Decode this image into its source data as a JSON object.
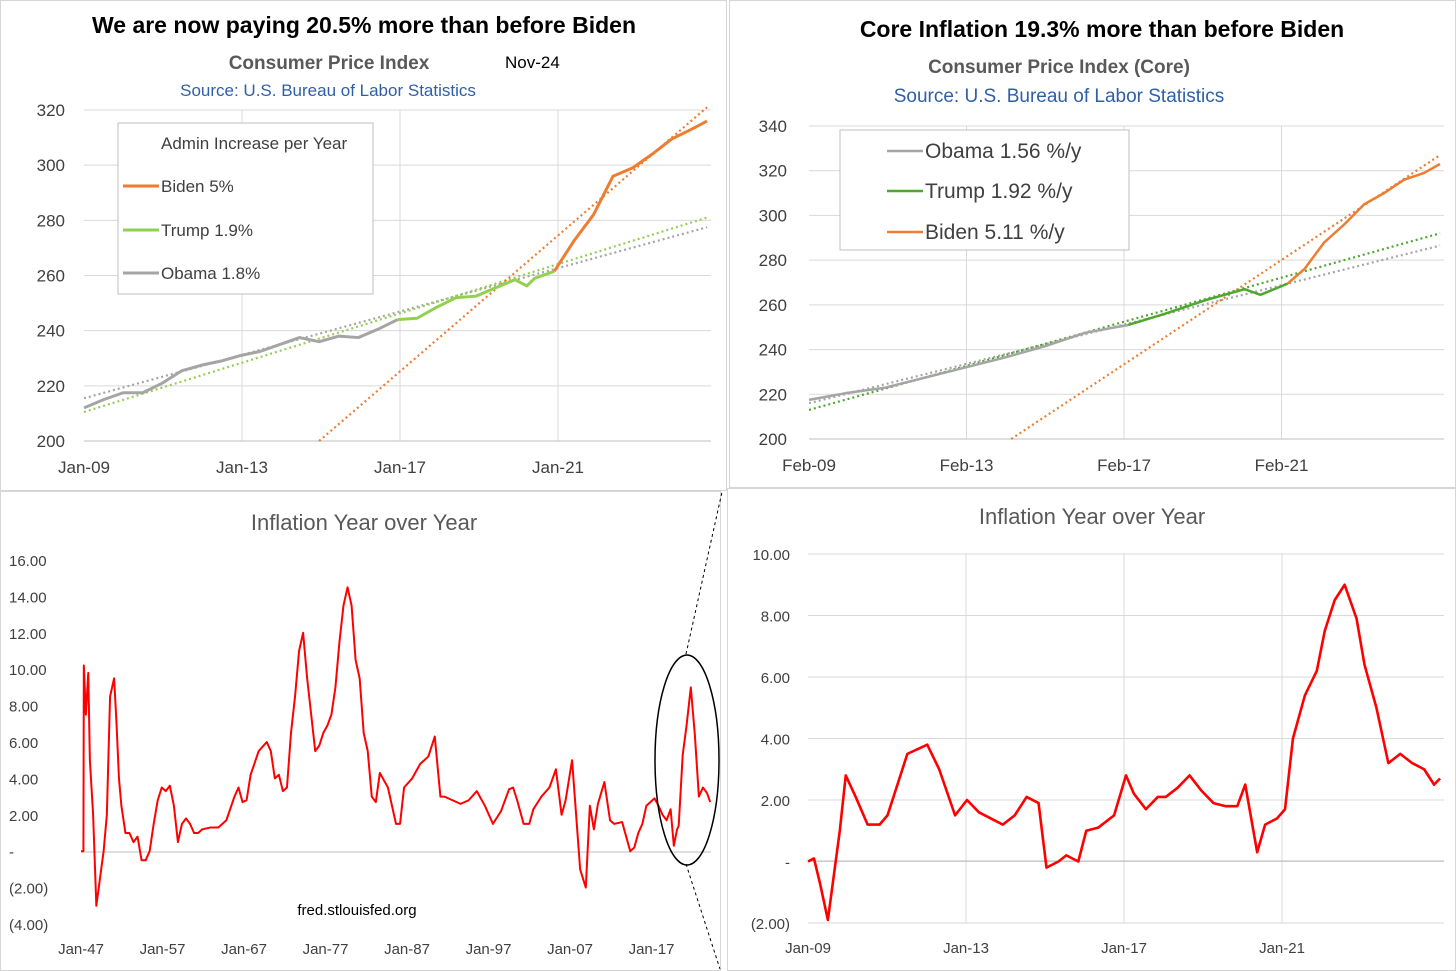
{
  "colors": {
    "biden": "#ED7D31",
    "trump_left": "#92D050",
    "trump_right": "#4EA72E",
    "obama": "#A5A5A5",
    "inflation": "#FF0000",
    "source_blue": "#2E5FA8",
    "grid": "#D9D9D9",
    "axis_text": "#404040",
    "title": "#000000",
    "subtitle": "#595959"
  },
  "chart_data": [
    {
      "type": "line",
      "title": "We are now paying 20.5% more than before Biden",
      "subtitle": "Consumer Price Index",
      "date_note": "Nov-24",
      "source": "Source: U.S. Bureau of Labor Statistics",
      "ylim": [
        200,
        320
      ],
      "yticks": [
        "200",
        "220",
        "240",
        "260",
        "280",
        "300",
        "320"
      ],
      "xlim": [
        2009.0,
        2025.0
      ],
      "xticks": [
        "Jan-09",
        "Jan-13",
        "Jan-17",
        "Jan-21"
      ],
      "grid": "horizontal+vertical",
      "legend_placement": "top-left",
      "legend_title": "Admin Increase per Year",
      "legend": [
        "Biden 5%",
        "Trump 1.9%",
        "Obama 1.8%"
      ],
      "series": [
        {
          "name": "Obama 1.8%",
          "color_key": "obama",
          "x": [
            2009.0,
            2009.5,
            2010.0,
            2010.5,
            2011.0,
            2011.5,
            2012.0,
            2012.5,
            2013.0,
            2013.5,
            2014.0,
            2014.5,
            2015.0,
            2015.5,
            2016.0,
            2016.5,
            2017.0
          ],
          "y": [
            212,
            215,
            217.5,
            217.5,
            221,
            225.5,
            227.5,
            229,
            231,
            232.5,
            235,
            237.5,
            236,
            238,
            237.5,
            240.5,
            244
          ]
        },
        {
          "name": "Trump 1.9%",
          "color_key": "trump_left",
          "x": [
            2017.0,
            2017.5,
            2018.0,
            2018.5,
            2019.0,
            2019.5,
            2020.0,
            2020.3,
            2020.5,
            2020.8,
            2021.0
          ],
          "y": [
            244,
            244.5,
            248.5,
            252,
            252.5,
            255.5,
            258.5,
            256.2,
            259,
            260.5,
            261.5
          ]
        },
        {
          "name": "Biden 5%",
          "color_key": "biden",
          "x": [
            2021.0,
            2021.5,
            2022.0,
            2022.5,
            2023.0,
            2023.5,
            2024.0,
            2024.5,
            2024.9
          ],
          "y": [
            261.5,
            272.5,
            282,
            296,
            299,
            304,
            309.5,
            313,
            316
          ]
        }
      ],
      "trendlines": [
        {
          "name": "Obama trend",
          "color_key": "obama",
          "x": [
            2009.0,
            2024.9
          ],
          "y": [
            215.5,
            277.5
          ]
        },
        {
          "name": "Trump trend",
          "color_key": "trump_left",
          "x": [
            2009.0,
            2024.9
          ],
          "y": [
            210.5,
            281
          ]
        },
        {
          "name": "Biden trend",
          "color_key": "biden",
          "x": [
            2015.0,
            2024.9
          ],
          "y": [
            200,
            321
          ]
        }
      ]
    },
    {
      "type": "line",
      "title": "Core Inflation 19.3% more than before Biden",
      "subtitle": "Consumer Price Index (Core)",
      "source": "Source: U.S. Bureau of Labor Statistics",
      "ylim": [
        200,
        340
      ],
      "yticks": [
        "200",
        "220",
        "240",
        "260",
        "280",
        "300",
        "320",
        "340"
      ],
      "xlim": [
        2009.08,
        2025.0
      ],
      "xticks": [
        "Feb-09",
        "Feb-13",
        "Feb-17",
        "Feb-21"
      ],
      "grid": "horizontal+vertical",
      "legend_placement": "top-left",
      "legend": [
        "Obama 1.56 %/y",
        "Trump 1.92 %/y",
        "Biden 5.11 %/y"
      ],
      "series": [
        {
          "name": "Obama 1.56 %/y",
          "color_key": "obama",
          "x": [
            2009.08,
            2010.0,
            2011.0,
            2012.0,
            2013.0,
            2014.0,
            2015.0,
            2016.0,
            2017.08
          ],
          "y": [
            217.5,
            220.5,
            223,
            227.5,
            232,
            236.5,
            241.5,
            247.5,
            251
          ]
        },
        {
          "name": "Trump 1.92 %/y",
          "color_key": "trump_right",
          "x": [
            2017.08,
            2018.0,
            2019.0,
            2020.0,
            2020.4,
            2021.08
          ],
          "y": [
            251,
            256,
            262,
            267,
            264.5,
            269.5
          ]
        },
        {
          "name": "Biden 5.11 %/y",
          "color_key": "biden",
          "x": [
            2021.08,
            2021.5,
            2022.0,
            2022.5,
            2023.0,
            2023.5,
            2024.0,
            2024.5,
            2024.9
          ],
          "y": [
            269.5,
            276,
            288,
            296,
            305,
            310,
            316,
            319,
            323
          ]
        }
      ],
      "trendlines": [
        {
          "name": "Obama trend",
          "color_key": "obama",
          "x": [
            2009.08,
            2024.9
          ],
          "y": [
            216,
            286.5
          ]
        },
        {
          "name": "Trump trend",
          "color_key": "trump_right",
          "x": [
            2009.08,
            2024.9
          ],
          "y": [
            213,
            292
          ]
        },
        {
          "name": "Biden trend",
          "color_key": "biden",
          "x": [
            2014.15,
            2024.9
          ],
          "y": [
            200,
            327
          ]
        }
      ]
    },
    {
      "type": "line",
      "title": "Inflation Year over Year",
      "ylim": [
        -4,
        16
      ],
      "yticks": [
        "(4.00)",
        "(2.00)",
        "-",
        "2.00",
        "4.00",
        "6.00",
        "8.00",
        "10.00",
        "12.00",
        "14.00",
        "16.00"
      ],
      "xlim": [
        1947.0,
        2025.0
      ],
      "xticks": [
        "Jan-47",
        "Jan-57",
        "Jan-67",
        "Jan-77",
        "Jan-87",
        "Jan-97",
        "Jan-07",
        "Jan-17"
      ],
      "grid": "none",
      "annotation": "fred.stlouisfed.org",
      "series": [
        {
          "name": "",
          "color_key": "inflation",
          "x": [
            1947.0,
            1947.3,
            1947.35,
            1947.6,
            1947.9,
            1948.1,
            1948.5,
            1948.9,
            1949.2,
            1949.5,
            1949.8,
            1950.2,
            1950.6,
            1951.1,
            1951.4,
            1951.7,
            1952.0,
            1952.5,
            1953.0,
            1953.5,
            1954.0,
            1954.5,
            1955.0,
            1955.5,
            1956.0,
            1956.5,
            1957.0,
            1957.5,
            1958.0,
            1958.5,
            1959.0,
            1959.5,
            1960.0,
            1960.5,
            1961.0,
            1961.5,
            1962.0,
            1963.0,
            1964.0,
            1965.0,
            1966.0,
            1966.5,
            1967.0,
            1967.5,
            1968.0,
            1969.0,
            1970.0,
            1970.5,
            1971.0,
            1971.5,
            1972.0,
            1972.5,
            1973.0,
            1973.5,
            1974.0,
            1974.5,
            1975.0,
            1975.5,
            1976.0,
            1976.5,
            1977.0,
            1977.5,
            1978.0,
            1978.5,
            1979.0,
            1979.5,
            1980.0,
            1980.5,
            1981.0,
            1981.5,
            1982.0,
            1982.5,
            1983.0,
            1983.5,
            1984.0,
            1985.0,
            1986.0,
            1986.5,
            1987.0,
            1988.0,
            1989.0,
            1990.0,
            1990.8,
            1991.5,
            1992.0,
            1993.0,
            1994.0,
            1995.0,
            1996.0,
            1997.0,
            1998.0,
            1999.0,
            2000.0,
            2000.5,
            2001.0,
            2001.8,
            2002.5,
            2003.0,
            2004.0,
            2005.0,
            2005.8,
            2006.5,
            2007.0,
            2007.8,
            2008.3,
            2008.8,
            2009.5,
            2010.0,
            2010.5,
            2011.0,
            2011.8,
            2012.5,
            2013.0,
            2014.0,
            2015.0,
            2015.5,
            2016.0,
            2016.5,
            2017.0,
            2018.0,
            2018.5,
            2019.0,
            2019.5,
            2020.0,
            2020.4,
            2020.8,
            2021.0,
            2021.5,
            2022.0,
            2022.5,
            2023.0,
            2023.5,
            2024.0,
            2024.5,
            2024.9
          ],
          "y": [
            0,
            0,
            10.2,
            7.5,
            9.8,
            5.0,
            2.0,
            -3.0,
            -2.0,
            -1.0,
            0.0,
            2.0,
            8.5,
            9.5,
            7.0,
            4.0,
            2.5,
            1.0,
            1.0,
            0.5,
            0.8,
            -0.5,
            -0.5,
            0.0,
            1.5,
            2.8,
            3.5,
            3.3,
            3.6,
            2.5,
            0.5,
            1.5,
            1.8,
            1.5,
            1.0,
            1.0,
            1.2,
            1.3,
            1.3,
            1.7,
            3.0,
            3.5,
            2.7,
            2.8,
            4.2,
            5.5,
            6.0,
            5.5,
            4.0,
            4.2,
            3.3,
            3.5,
            6.5,
            8.5,
            11.0,
            12.0,
            9.5,
            7.5,
            5.5,
            5.8,
            6.5,
            6.9,
            7.5,
            9.0,
            11.5,
            13.5,
            14.5,
            13.5,
            10.5,
            9.5,
            6.5,
            5.5,
            3.0,
            2.7,
            4.3,
            3.5,
            1.5,
            1.5,
            3.5,
            4.0,
            4.8,
            5.2,
            6.3,
            3.0,
            3.0,
            2.8,
            2.6,
            2.8,
            3.3,
            2.5,
            1.5,
            2.2,
            3.4,
            3.5,
            2.8,
            1.5,
            1.5,
            2.3,
            3.0,
            3.5,
            4.5,
            2.0,
            2.8,
            5.0,
            2.0,
            -1.0,
            -2.0,
            2.5,
            1.2,
            2.6,
            3.8,
            1.7,
            1.5,
            1.6,
            0.0,
            0.2,
            1.0,
            1.5,
            2.5,
            2.9,
            2.5,
            2.0,
            1.7,
            2.3,
            0.3,
            1.2,
            1.4,
            5.3,
            7.0,
            9.0,
            6.4,
            3.0,
            3.5,
            3.2,
            2.7
          ]
        }
      ]
    },
    {
      "type": "line",
      "title": "Inflation Year over Year",
      "ylim": [
        -2,
        10
      ],
      "yticks": [
        "(2.00)",
        "-",
        "2.00",
        "4.00",
        "6.00",
        "8.00",
        "10.00"
      ],
      "xlim": [
        2009.0,
        2025.0
      ],
      "xticks": [
        "Jan-09",
        "Jan-13",
        "Jan-17",
        "Jan-21"
      ],
      "grid": "horizontal+vertical",
      "series": [
        {
          "name": "",
          "color_key": "inflation",
          "x": [
            2009.0,
            2009.15,
            2009.3,
            2009.5,
            2009.8,
            2009.95,
            2010.2,
            2010.5,
            2010.8,
            2011.0,
            2011.5,
            2012.0,
            2012.3,
            2012.7,
            2013.0,
            2013.3,
            2013.6,
            2013.9,
            2014.2,
            2014.5,
            2014.8,
            2015.0,
            2015.3,
            2015.5,
            2015.8,
            2016.0,
            2016.3,
            2016.7,
            2017.0,
            2017.2,
            2017.5,
            2017.8,
            2018.0,
            2018.3,
            2018.6,
            2018.9,
            2019.2,
            2019.5,
            2019.8,
            2020.0,
            2020.3,
            2020.5,
            2020.8,
            2021.0,
            2021.2,
            2021.5,
            2021.8,
            2022.0,
            2022.25,
            2022.5,
            2022.8,
            2023.0,
            2023.3,
            2023.6,
            2023.9,
            2024.2,
            2024.5,
            2024.75,
            2024.9
          ],
          "y": [
            0,
            0.1,
            -0.7,
            -1.9,
            1.0,
            2.8,
            2.1,
            1.2,
            1.2,
            1.5,
            3.5,
            3.8,
            3.0,
            1.5,
            2.0,
            1.6,
            1.4,
            1.2,
            1.5,
            2.1,
            1.9,
            -0.2,
            0.0,
            0.2,
            0.0,
            1.0,
            1.1,
            1.5,
            2.8,
            2.2,
            1.7,
            2.1,
            2.1,
            2.4,
            2.8,
            2.3,
            1.9,
            1.8,
            1.8,
            2.5,
            0.3,
            1.2,
            1.4,
            1.7,
            4.0,
            5.4,
            6.2,
            7.5,
            8.5,
            9.0,
            7.9,
            6.4,
            5.0,
            3.2,
            3.5,
            3.2,
            3.0,
            2.5,
            2.7
          ]
        }
      ]
    }
  ]
}
